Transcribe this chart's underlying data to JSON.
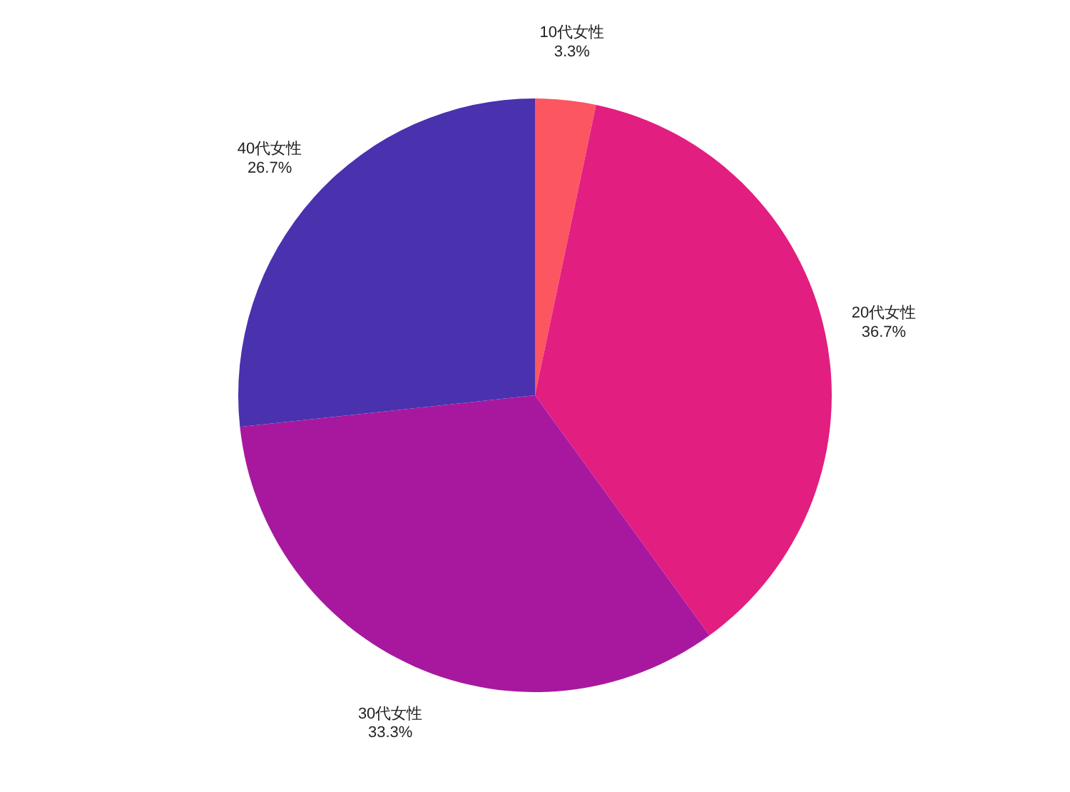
{
  "chart_data": {
    "type": "pie",
    "categories": [
      "10代女性",
      "20代女性",
      "30代女性",
      "40代女性"
    ],
    "values": [
      3.3,
      36.7,
      33.3,
      26.7
    ],
    "value_labels": [
      "3.3%",
      "36.7%",
      "33.3%",
      "26.7%"
    ],
    "colors": [
      "#fc5660",
      "#e21e80",
      "#a8189f",
      "#4a31ae"
    ]
  }
}
